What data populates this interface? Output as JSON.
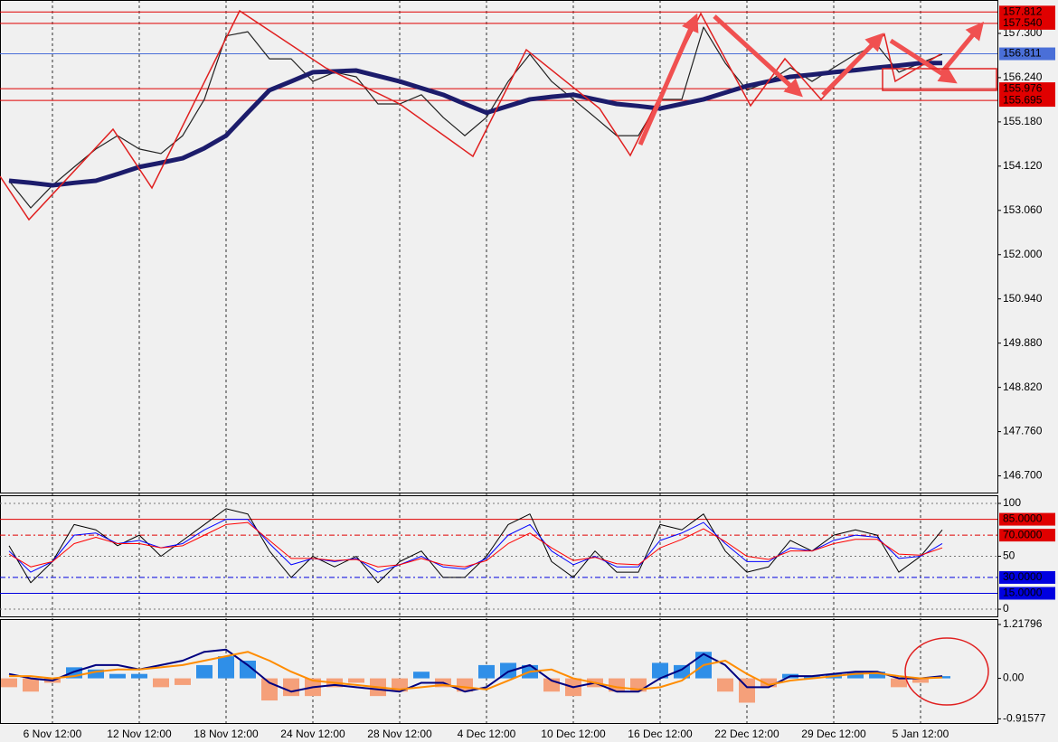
{
  "chart_data": [
    {
      "type": "line",
      "ylim": [
        146.3,
        158.1
      ],
      "yticks": [
        {
          "value": 157.3,
          "label": "157.300"
        },
        {
          "value": 156.24,
          "label": "156.240"
        },
        {
          "value": 155.18,
          "label": "155.180"
        },
        {
          "value": 154.12,
          "label": "154.120"
        },
        {
          "value": 153.06,
          "label": "153.060"
        },
        {
          "value": 152.0,
          "label": "152.000"
        },
        {
          "value": 150.94,
          "label": "150.940"
        },
        {
          "value": 149.88,
          "label": "149.880"
        },
        {
          "value": 148.82,
          "label": "148.820"
        },
        {
          "value": 147.76,
          "label": "147.760"
        },
        {
          "value": 146.7,
          "label": "146.700"
        }
      ],
      "hlines": [
        {
          "value": 157.812,
          "color": "#e00000"
        },
        {
          "value": 157.54,
          "label": "157.540",
          "color": "#e00000"
        },
        {
          "value": 156.811,
          "color": "#4a6fd8"
        },
        {
          "value": 155.976,
          "color": "#e00000"
        },
        {
          "value": 155.695,
          "color": "#e00000"
        }
      ],
      "series": [
        {
          "color": "#222222",
          "linewidth": 1.2,
          "values": [
            153.77,
            153.12,
            153.66,
            154.1,
            154.53,
            154.85,
            154.53,
            154.42,
            154.85,
            155.72,
            157.24,
            157.34,
            156.69,
            156.69,
            156.15,
            156.37,
            156.26,
            155.61,
            155.61,
            155.83,
            155.29,
            154.85,
            155.29,
            156.15,
            156.8,
            156.15,
            155.72,
            155.29,
            154.85,
            154.85,
            155.72,
            155.72,
            157.45,
            156.59,
            155.94,
            156.15,
            156.48,
            156.15,
            156.48,
            156.8,
            157.02,
            156.37,
            156.59,
            156.8
          ]
        },
        {
          "color": "#1c1c6b",
          "linewidth": 5,
          "values": [
            153.77,
            153.72,
            153.66,
            153.72,
            153.77,
            153.93,
            154.1,
            154.2,
            154.31,
            154.55,
            154.85,
            155.4,
            155.94,
            156.15,
            156.37,
            156.39,
            156.41,
            156.28,
            156.15,
            155.99,
            155.83,
            155.61,
            155.4,
            155.56,
            155.72,
            155.78,
            155.83,
            155.72,
            155.61,
            155.56,
            155.5,
            155.61,
            155.72,
            155.88,
            156.04,
            156.15,
            156.26,
            156.31,
            156.37,
            156.42,
            156.48,
            156.53,
            156.59,
            156.59
          ]
        }
      ]
    },
    {
      "type": "line",
      "ylim": [
        -6.8,
        107.7
      ],
      "yticks": [
        0,
        50,
        100
      ],
      "grid": true,
      "hlines": [
        {
          "value": 85,
          "label": "85.0000",
          "color": "#e00000"
        },
        {
          "value": 70,
          "label": "70.0000",
          "color": "#e00000",
          "dash": true
        },
        {
          "value": 30,
          "label": "30.0000",
          "color": "#0000e0",
          "dash": true
        },
        {
          "value": 15,
          "label": "15.0000",
          "color": "#0000e0"
        }
      ],
      "series": [
        {
          "color": "#000000",
          "linewidth": 1,
          "values": [
            60,
            25,
            45,
            80,
            75,
            60,
            70,
            50,
            65,
            80,
            95,
            90,
            55,
            30,
            50,
            40,
            50,
            25,
            45,
            55,
            30,
            30,
            50,
            80,
            90,
            45,
            30,
            55,
            35,
            35,
            80,
            75,
            90,
            55,
            35,
            40,
            65,
            55,
            70,
            75,
            70,
            35,
            50,
            75
          ]
        },
        {
          "color": "#0000ff",
          "linewidth": 1,
          "values": [
            55,
            35,
            45,
            70,
            72,
            62,
            65,
            58,
            62,
            75,
            85,
            85,
            62,
            42,
            48,
            45,
            48,
            35,
            42,
            50,
            40,
            38,
            48,
            70,
            80,
            55,
            42,
            50,
            40,
            40,
            65,
            72,
            82,
            62,
            45,
            45,
            58,
            55,
            65,
            70,
            68,
            48,
            50,
            62
          ]
        },
        {
          "color": "#ff0000",
          "linewidth": 1,
          "values": [
            52,
            40,
            45,
            62,
            68,
            62,
            62,
            58,
            60,
            70,
            80,
            82,
            65,
            48,
            48,
            46,
            47,
            40,
            42,
            48,
            42,
            40,
            46,
            62,
            72,
            58,
            46,
            49,
            43,
            42,
            58,
            66,
            76,
            64,
            50,
            47,
            55,
            55,
            62,
            66,
            66,
            52,
            51,
            58
          ]
        }
      ]
    },
    {
      "type": "bar",
      "ylim": [
        -1.01,
        1.34
      ],
      "yticks": [
        1.21796,
        {
          "value": 0,
          "label": "0.00"
        },
        -0.91577
      ],
      "categories": [
        null,
        null,
        "6 Nov 12:00",
        null,
        null,
        null,
        "12 Nov 12:00",
        null,
        null,
        null,
        "18 Nov 12:00",
        null,
        null,
        null,
        "24 Nov 12:00",
        null,
        null,
        null,
        "28 Nov 12:00",
        null,
        null,
        null,
        "4 Dec 12:00",
        null,
        null,
        null,
        "10 Dec 12:00",
        null,
        null,
        null,
        "16 Dec 12:00",
        null,
        null,
        null,
        "22 Dec 12:00",
        null,
        null,
        null,
        "29 Dec 12:00",
        null,
        null,
        null,
        "5 Jan 12:00",
        null
      ],
      "series": [
        {
          "type": "bar",
          "color": "#2f8fe8",
          "negative_color": "#f5a07a",
          "values": [
            -0.2,
            -0.3,
            -0.1,
            0.25,
            0.2,
            0.1,
            0.1,
            -0.2,
            -0.15,
            0.3,
            0.5,
            0.4,
            -0.5,
            -0.4,
            -0.4,
            -0.2,
            -0.1,
            -0.4,
            -0.3,
            0.15,
            -0.2,
            -0.3,
            0.3,
            0.35,
            0.3,
            -0.3,
            -0.4,
            -0.2,
            -0.3,
            -0.3,
            0.35,
            0.3,
            0.6,
            -0.3,
            -0.55,
            -0.2,
            0.1,
            0.05,
            0.1,
            0.15,
            0.15,
            -0.2,
            -0.1,
            0.05
          ]
        },
        {
          "type": "line",
          "color": "#000080",
          "linewidth": 2,
          "values": [
            0.1,
            0,
            -0.05,
            0.15,
            0.3,
            0.3,
            0.2,
            0.3,
            0.4,
            0.6,
            0.65,
            0.3,
            -0.1,
            -0.3,
            -0.2,
            -0.15,
            -0.2,
            -0.25,
            -0.3,
            -0.1,
            -0.1,
            -0.3,
            -0.2,
            0.15,
            0.3,
            -0.05,
            -0.2,
            -0.1,
            -0.3,
            -0.3,
            0,
            0.2,
            0.55,
            0.3,
            -0.2,
            -0.2,
            0.05,
            0.05,
            0.1,
            0.15,
            0.15,
            0,
            0,
            0.05
          ]
        },
        {
          "type": "line",
          "color": "#ff8c00",
          "linewidth": 2,
          "values": [
            0.05,
            0.05,
            0,
            0.05,
            0.15,
            0.2,
            0.2,
            0.25,
            0.3,
            0.4,
            0.5,
            0.6,
            0.4,
            0.15,
            -0.05,
            -0.1,
            -0.15,
            -0.2,
            -0.25,
            -0.2,
            -0.15,
            -0.2,
            -0.25,
            -0.05,
            0.15,
            0.2,
            0,
            -0.1,
            -0.2,
            -0.25,
            -0.2,
            -0.05,
            0.3,
            0.4,
            0.1,
            -0.15,
            -0.05,
            0,
            0.05,
            0.1,
            0.12,
            0.05,
            0,
            0.02
          ]
        }
      ]
    }
  ]
}
